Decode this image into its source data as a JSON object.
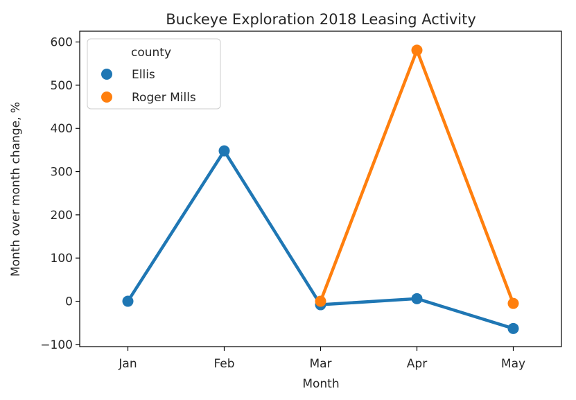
{
  "chart_data": {
    "type": "line",
    "title": "Buckeye Exploration 2018 Leasing Activity",
    "xlabel": "Month",
    "ylabel": "Month over month change, %",
    "categories": [
      "Jan",
      "Feb",
      "Mar",
      "Apr",
      "May"
    ],
    "ylim": [
      -105,
      625
    ],
    "yticks": [
      -100,
      0,
      100,
      200,
      300,
      400,
      500,
      600
    ],
    "ytick_labels": [
      "−100",
      "0",
      "100",
      "200",
      "300",
      "400",
      "500",
      "600"
    ],
    "grid": false,
    "legend": {
      "title": "county",
      "placement": "top-left"
    },
    "series": [
      {
        "name": "Ellis",
        "color": "#1f77b4",
        "values": [
          0,
          348,
          -8,
          6,
          -63
        ]
      },
      {
        "name": "Roger Mills",
        "color": "#ff7f0e",
        "values": [
          null,
          null,
          0,
          581,
          -5
        ]
      }
    ]
  }
}
